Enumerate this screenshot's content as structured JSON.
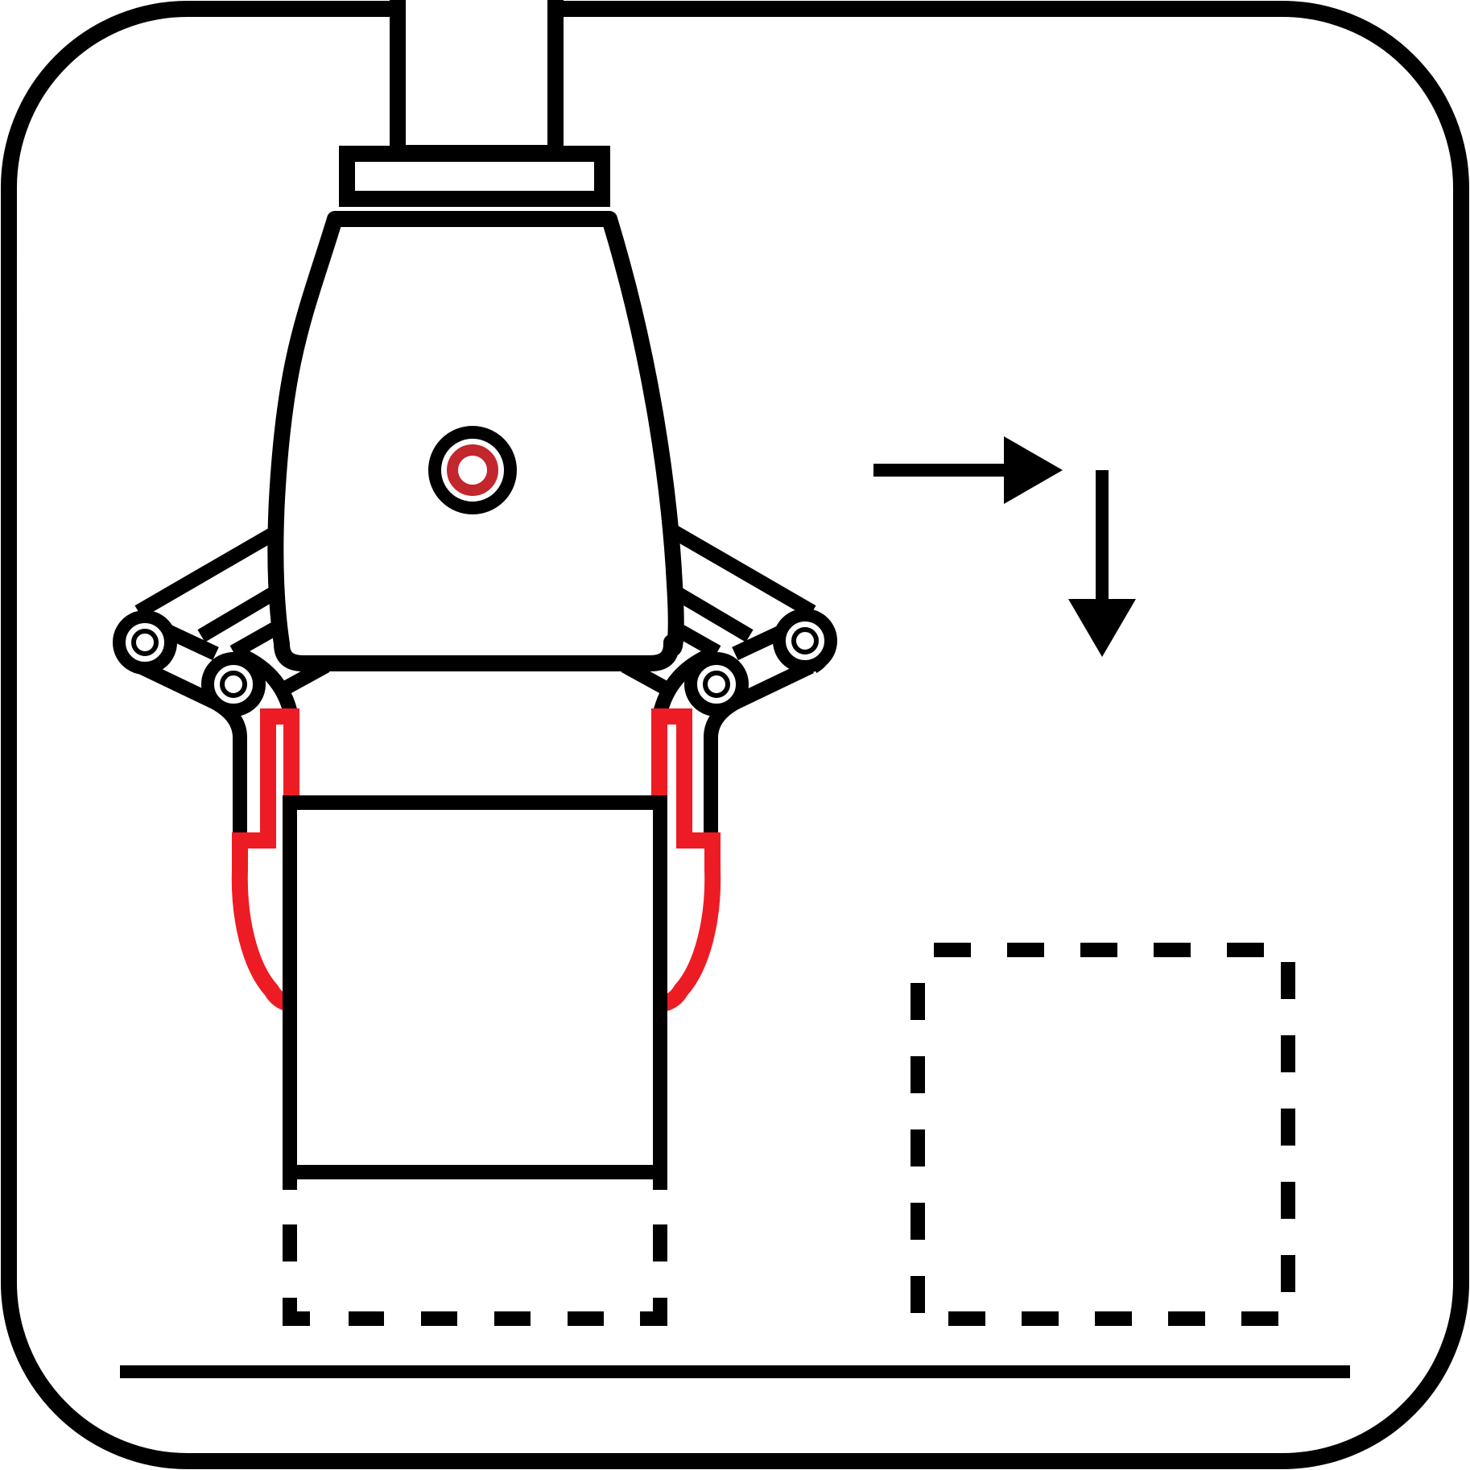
{
  "diagram": {
    "kind": "pictogram",
    "subject": "gripper-pick-and-place",
    "text_labels": [],
    "colors": {
      "outline": "#000000",
      "finger_pad": "#ed1c24",
      "sensor_ring": "#c1272d",
      "background": "#ffffff"
    },
    "icons": [
      "rounded-frame-icon",
      "gripper-icon",
      "arrow-right-icon",
      "arrow-down-icon"
    ],
    "steps": [
      {
        "motion": "right"
      },
      {
        "motion": "down"
      }
    ]
  }
}
